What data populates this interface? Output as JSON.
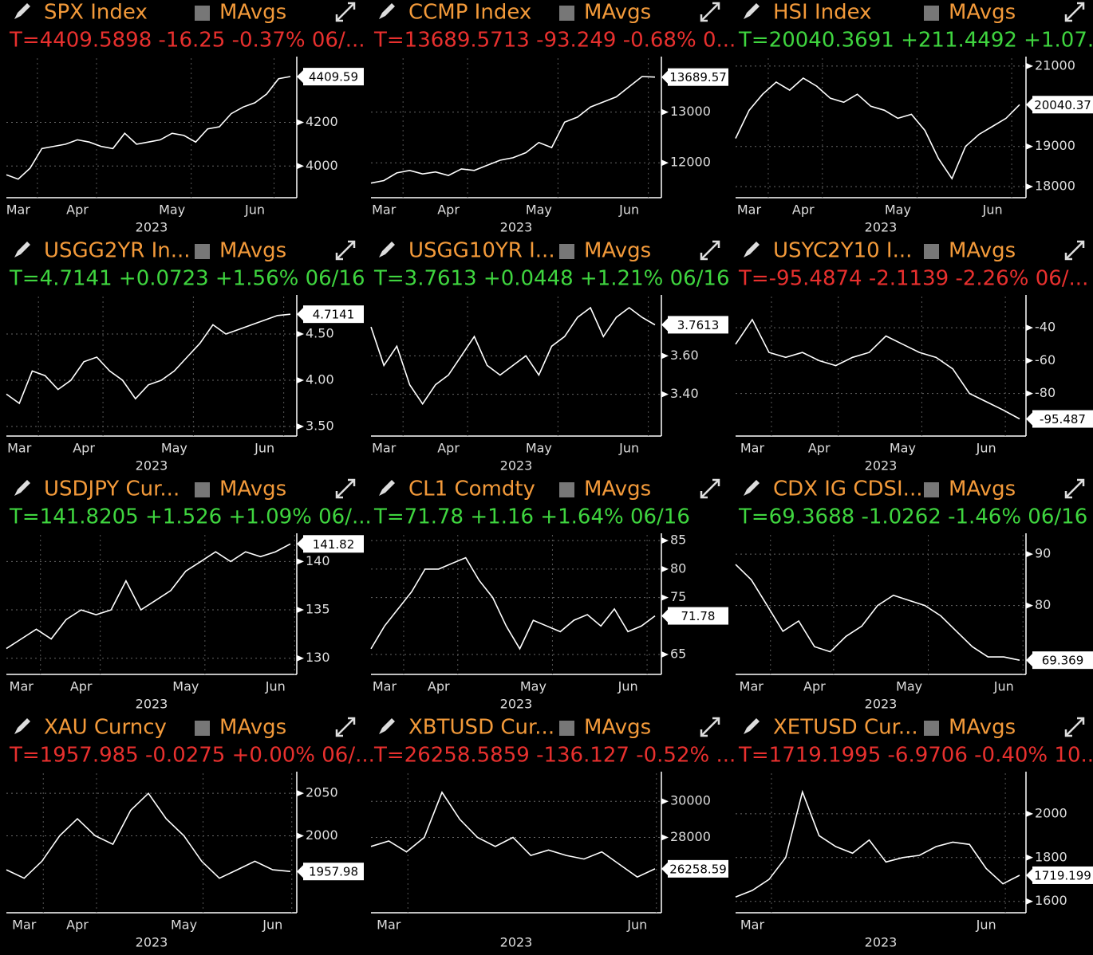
{
  "chart_data": [
    {
      "type": "line",
      "title": "SPX Index",
      "legend": "MAvgs",
      "quote": "T=4409.5898 -16.25 -0.37% 06/...",
      "quote_color": "#e8302e",
      "color": "#ffffff",
      "xlabel": "2023",
      "values": [
        3960,
        3940,
        3990,
        4080,
        4090,
        4100,
        4120,
        4110,
        4090,
        4080,
        4150,
        4100,
        4110,
        4120,
        4150,
        4140,
        4110,
        4170,
        4180,
        4240,
        4270,
        4290,
        4330,
        4400,
        4410
      ],
      "last_value": 4409.59,
      "xlim": [
        0,
        24
      ],
      "xticks": [
        {
          "value": 1,
          "label": "Mar"
        },
        {
          "value": 6,
          "label": "Apr"
        },
        {
          "value": 14,
          "label": "May"
        },
        {
          "value": 21,
          "label": "Jun"
        }
      ],
      "ylim": [
        3855,
        4494
      ],
      "yticks": [
        4000,
        4200
      ],
      "grid": true
    },
    {
      "type": "line",
      "title": "CCMP Index",
      "legend": "MAvgs",
      "quote": "T=13689.5713 -93.249 -0.68% 0...",
      "quote_color": "#e8302e",
      "color": "#ffffff",
      "xlabel": "2023",
      "values": [
        11600,
        11650,
        11800,
        11850,
        11780,
        11820,
        11750,
        11880,
        11850,
        11950,
        12050,
        12100,
        12200,
        12400,
        12300,
        12800,
        12900,
        13100,
        13200,
        13300,
        13500,
        13700,
        13690
      ],
      "last_value": 13689.57,
      "xlim": [
        0,
        22
      ],
      "xticks": [
        {
          "value": 1,
          "label": "Mar"
        },
        {
          "value": 6,
          "label": "Apr"
        },
        {
          "value": 13,
          "label": "May"
        },
        {
          "value": 20,
          "label": "Jun"
        }
      ],
      "ylim": [
        11312,
        14062
      ],
      "yticks": [
        12000,
        13000
      ],
      "grid": true
    },
    {
      "type": "line",
      "title": "HSI Index",
      "legend": "MAvgs",
      "quote": "T=20040.3691 +211.4492 +1.07...",
      "quote_color": "#3fd53f",
      "color": "#ffffff",
      "xlabel": "2023",
      "values": [
        19200,
        19900,
        20300,
        20600,
        20400,
        20700,
        20500,
        20200,
        20100,
        20300,
        20000,
        19900,
        19700,
        19800,
        19400,
        18700,
        18200,
        19000,
        19300,
        19500,
        19700,
        20040
      ],
      "last_value": 20040.37,
      "xlim": [
        0,
        21
      ],
      "xticks": [
        {
          "value": 1,
          "label": "Mar"
        },
        {
          "value": 5,
          "label": "Apr"
        },
        {
          "value": 12,
          "label": "May"
        },
        {
          "value": 19,
          "label": "Jun"
        }
      ],
      "ylim": [
        17725,
        21196
      ],
      "yticks": [
        18000,
        19000,
        21000
      ],
      "grid": true
    },
    {
      "type": "line",
      "title": "USGG2YR In...",
      "legend": "MAvgs",
      "quote": "T=4.7141 +0.0723 +1.56% 06/16",
      "quote_color": "#3fd53f",
      "color": "#ffffff",
      "xlabel": "2023",
      "values": [
        3.85,
        3.75,
        4.1,
        4.05,
        3.9,
        4.0,
        4.2,
        4.25,
        4.1,
        4.0,
        3.8,
        3.95,
        4.0,
        4.1,
        4.25,
        4.4,
        4.6,
        4.5,
        4.55,
        4.6,
        4.65,
        4.7,
        4.714
      ],
      "last_value": 4.7141,
      "xlim": [
        0,
        22
      ],
      "xticks": [
        {
          "value": 1,
          "label": "Mar"
        },
        {
          "value": 6,
          "label": "Apr"
        },
        {
          "value": 13,
          "label": "May"
        },
        {
          "value": 20,
          "label": "Jun"
        }
      ],
      "ylim": [
        3.397,
        4.905
      ],
      "yticks": [
        {
          "value": 3.5,
          "label": "3.50"
        },
        {
          "value": 4,
          "label": "4.00"
        },
        {
          "value": 4.5,
          "label": "4.50"
        }
      ],
      "grid": true
    },
    {
      "type": "line",
      "title": "USGG10YR I...",
      "legend": "MAvgs",
      "quote": "T=3.7613 +0.0448 +1.21% 06/16",
      "quote_color": "#3fd53f",
      "color": "#ffffff",
      "xlabel": "2023",
      "values": [
        3.75,
        3.55,
        3.65,
        3.45,
        3.35,
        3.45,
        3.5,
        3.6,
        3.7,
        3.55,
        3.5,
        3.55,
        3.6,
        3.5,
        3.65,
        3.7,
        3.8,
        3.85,
        3.7,
        3.8,
        3.85,
        3.8,
        3.761
      ],
      "last_value": 3.7613,
      "xlim": [
        0,
        22
      ],
      "xticks": [
        {
          "value": 1,
          "label": "Mar"
        },
        {
          "value": 6,
          "label": "Apr"
        },
        {
          "value": 13,
          "label": "May"
        },
        {
          "value": 20,
          "label": "Jun"
        }
      ],
      "ylim": [
        3.183,
        3.908
      ],
      "yticks": [
        {
          "value": 3.4,
          "label": "3.40"
        },
        {
          "value": 3.6,
          "label": "3.60"
        }
      ],
      "grid": true
    },
    {
      "type": "line",
      "title": "USYC2Y10 I...",
      "legend": "MAvgs",
      "quote": "T=-95.4874 -2.1139 -2.26% 06/...",
      "quote_color": "#e8302e",
      "color": "#ffffff",
      "xlabel": "2023",
      "values": [
        -50,
        -35,
        -55,
        -58,
        -55,
        -60,
        -63,
        -58,
        -55,
        -45,
        -50,
        -55,
        -58,
        -65,
        -80,
        -85,
        -90,
        -95.487
      ],
      "last_value": -95.487,
      "xlim": [
        0,
        17
      ],
      "xticks": [
        {
          "value": 1,
          "label": "Mar"
        },
        {
          "value": 5,
          "label": "Apr"
        },
        {
          "value": 10,
          "label": "May"
        },
        {
          "value": 15,
          "label": "Jun"
        }
      ],
      "ylim": [
        -105.9,
        -21
      ],
      "yticks": [
        -80,
        -60,
        -40
      ],
      "grid": true
    },
    {
      "type": "line",
      "title": "USDJPY Cur...",
      "legend": "MAvgs",
      "quote": "T=141.8205 +1.526 +1.09% 06/...",
      "quote_color": "#3fd53f",
      "color": "#ffffff",
      "xlabel": "2023",
      "values": [
        131,
        132,
        133,
        132,
        134,
        135,
        134.5,
        135,
        138,
        135,
        136,
        137,
        139,
        140,
        141,
        140,
        141,
        140.5,
        141,
        141.82
      ],
      "last_value": 141.82,
      "xlim": [
        0,
        19
      ],
      "xticks": [
        {
          "value": 1,
          "label": "Mar"
        },
        {
          "value": 5,
          "label": "Apr"
        },
        {
          "value": 12,
          "label": "May"
        },
        {
          "value": 18,
          "label": "Jun"
        }
      ],
      "ylim": [
        128.33,
        142.75
      ],
      "yticks": [
        130,
        135,
        140
      ],
      "grid": true
    },
    {
      "type": "line",
      "title": "CL1 Comdty",
      "legend": "MAvgs",
      "quote": "T=71.78 +1.16 +1.64% 06/16",
      "quote_color": "#3fd53f",
      "color": "#ffffff",
      "xlabel": "2023",
      "values": [
        66,
        70,
        73,
        76,
        80,
        80,
        81,
        82,
        78,
        75,
        70,
        66,
        71,
        70,
        69,
        71,
        72,
        70,
        73,
        69,
        70,
        71.78
      ],
      "last_value": 71.78,
      "xlim": [
        0,
        21
      ],
      "xticks": [
        {
          "value": 1,
          "label": "Mar"
        },
        {
          "value": 5,
          "label": "Apr"
        },
        {
          "value": 12,
          "label": "May"
        },
        {
          "value": 19,
          "label": "Jun"
        }
      ],
      "ylim": [
        61.5,
        86
      ],
      "yticks": [
        65,
        75,
        80,
        85
      ],
      "grid": true
    },
    {
      "type": "line",
      "title": "CDX IG CDSI...",
      "legend": "MAvgs",
      "quote": "T=69.3688 -1.0262 -1.46% 06/16",
      "quote_color": "#3fd53f",
      "color": "#ffffff",
      "xlabel": "2023",
      "values": [
        88,
        85,
        80,
        75,
        77,
        72,
        71,
        74,
        76,
        80,
        82,
        81,
        80,
        78,
        75,
        72,
        70,
        70,
        69.369
      ],
      "last_value": 69.369,
      "xlim": [
        0,
        18
      ],
      "xticks": [
        {
          "value": 1,
          "label": "Mar"
        },
        {
          "value": 5,
          "label": "Apr"
        },
        {
          "value": 11,
          "label": "May"
        },
        {
          "value": 17,
          "label": "Jun"
        }
      ],
      "ylim": [
        66.6,
        93.75
      ],
      "yticks": [
        80,
        90
      ],
      "grid": true
    },
    {
      "type": "line",
      "title": "XAU Curncy",
      "legend": "MAvgs",
      "quote": "T=1957.985 -0.0275 +0.00% 06/...",
      "quote_color": "#e8302e",
      "color": "#ffffff",
      "xlabel": "2023",
      "values": [
        1960,
        1950,
        1970,
        2000,
        2020,
        2000,
        1990,
        2030,
        2050,
        2020,
        2000,
        1970,
        1950,
        1960,
        1970,
        1960,
        1958
      ],
      "last_value": 1957.98,
      "xlim": [
        0,
        16
      ],
      "xticks": [
        {
          "value": 1,
          "label": "Mar"
        },
        {
          "value": 4,
          "label": "Apr"
        },
        {
          "value": 10,
          "label": "May"
        },
        {
          "value": 15,
          "label": "Jun"
        }
      ],
      "ylim": [
        1909.4,
        2073.6
      ],
      "yticks": [
        2000,
        2050
      ],
      "grid": true
    },
    {
      "type": "line",
      "title": "XBTUSD Cur...",
      "legend": "MAvgs",
      "quote": "T=26258.5859 -136.127 -0.52% ...",
      "quote_color": "#e8302e",
      "color": "#ffffff",
      "xlabel": "2023",
      "values": [
        27500,
        27800,
        27200,
        28000,
        30500,
        29000,
        28000,
        27500,
        28000,
        27000,
        27300,
        27000,
        26800,
        27200,
        26500,
        25800,
        26258.59
      ],
      "last_value": 26258.59,
      "xlim": [
        0,
        16
      ],
      "xticks": [
        {
          "value": 1,
          "label": "Mar"
        },
        {
          "value": 15,
          "label": "Jun"
        }
      ],
      "ylim": [
        23822,
        31556
      ],
      "yticks": [
        28000,
        30000
      ],
      "grid": true
    },
    {
      "type": "line",
      "title": "XETUSD Cur...",
      "legend": "MAvgs",
      "quote": "T=1719.1995 -6.9706 -0.40% 10...",
      "quote_color": "#e8302e",
      "color": "#ffffff",
      "xlabel": "2023",
      "values": [
        1620,
        1650,
        1700,
        1800,
        2100,
        1900,
        1850,
        1820,
        1880,
        1780,
        1800,
        1810,
        1850,
        1870,
        1860,
        1750,
        1680,
        1719.2
      ],
      "last_value": 1719.199,
      "xlim": [
        0,
        17
      ],
      "xticks": [
        {
          "value": 1,
          "label": "Mar"
        },
        {
          "value": 15,
          "label": "Jun"
        }
      ],
      "ylim": [
        1548,
        2185
      ],
      "yticks": [
        1600,
        1800,
        2000
      ],
      "grid": true
    }
  ]
}
